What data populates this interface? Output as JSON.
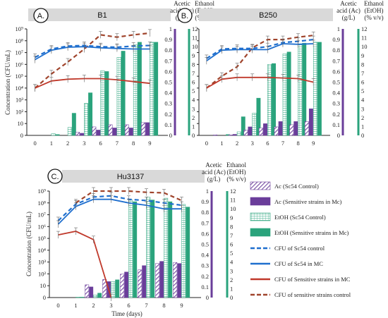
{
  "colors": {
    "ac_color": "#6a3d9a",
    "etoh_color": "#2aa37c",
    "cfu_sc54_color": "#1f6fce",
    "cfu_sensitive_mc_color": "#c0392b",
    "cfu_sensitive_control_color": "#a0442c",
    "header_bg": "#d9d9d9"
  },
  "left_axis": {
    "label": "Concentration (CFU/mL)",
    "tick_labels": [
      "10⁹",
      "10⁸",
      "10⁷",
      "10⁶",
      "10⁵",
      "10⁴",
      "10³",
      "10²",
      "10",
      "0"
    ]
  },
  "right_axes": {
    "ac_label": [
      "Acetic",
      "acid (Ac)",
      "(g/L)"
    ],
    "etoh_label": [
      "Ethanol",
      "(EtOH)",
      "(% v/v)"
    ],
    "ac_ticks": [
      "1",
      "0.9",
      "0.8",
      "0.7",
      "0.6",
      "0.5",
      "0.4",
      "0.3",
      "0.2",
      "0.1",
      "0"
    ],
    "etoh_ticks": [
      "12",
      "11",
      "10",
      "9",
      "8",
      "7",
      "6",
      "5",
      "4",
      "3",
      "2",
      "1",
      "0"
    ]
  },
  "x_ticks": [
    "0",
    "1",
    "2",
    "3",
    "6",
    "7",
    "8",
    "9"
  ],
  "x_label": "Time (days)",
  "legend": [
    {
      "label": "Ac (Sc54 Control)",
      "kind": "bar-hatch",
      "color": "#6a3d9a"
    },
    {
      "label": "Ac (Sensitive strains in Mc)",
      "kind": "bar-solid",
      "color": "#6a3d9a"
    },
    {
      "label": "EtOH (Sc54 Control)",
      "kind": "bar-grid",
      "color": "#2aa37c"
    },
    {
      "label": "EtOH (Sensitive strains in Mc)",
      "kind": "bar-solid",
      "color": "#2aa37c"
    },
    {
      "label": "CFU of Sc54 control",
      "kind": "line-dash",
      "color": "#1f6fce"
    },
    {
      "label": "CFU of Sc54 in MC",
      "kind": "line-solid",
      "color": "#1f6fce"
    },
    {
      "label": "CFU of Sensitive strains in MC",
      "kind": "line-solid",
      "color": "#c0392b"
    },
    {
      "label": "CFU of sensitive strains control",
      "kind": "line-dash",
      "color": "#a0442c"
    }
  ],
  "chart_data": [
    {
      "panel": "A.",
      "title": "B1",
      "type": "bar+line",
      "x": [
        "0",
        "1",
        "2",
        "3",
        "6",
        "7",
        "8",
        "9"
      ],
      "cfu_axis": "log10 CFU/mL, 0 (=10^0) to 9 (=10^9)",
      "series": [
        {
          "name": "CFU of Sc54 control",
          "type": "line",
          "log10_values": [
            6.6,
            7.3,
            7.55,
            7.6,
            7.5,
            7.45,
            7.55,
            7.6
          ]
        },
        {
          "name": "CFU of Sc54 in MC",
          "type": "line",
          "log10_values": [
            6.4,
            7.2,
            7.45,
            7.5,
            7.4,
            7.35,
            7.3,
            7.3
          ]
        },
        {
          "name": "CFU of Sensitive strains in MC",
          "type": "line",
          "log10_values": [
            4.0,
            4.6,
            4.75,
            4.8,
            4.8,
            4.7,
            4.55,
            4.4
          ]
        },
        {
          "name": "CFU of sensitive strains control",
          "type": "line",
          "log10_values": [
            4.0,
            5.2,
            6.2,
            7.3,
            8.5,
            8.3,
            8.5,
            8.65
          ]
        },
        {
          "name": "Ac (Sc54 Control)",
          "type": "bar",
          "axis": "acetic acid g/L",
          "values": [
            0.0,
            0.0,
            0.0,
            0.03,
            0.08,
            0.1,
            0.1,
            0.12
          ]
        },
        {
          "name": "Ac (Sensitive strains in Mc)",
          "type": "bar",
          "axis": "acetic acid g/L",
          "values": [
            0.0,
            0.0,
            0.0,
            0.02,
            0.05,
            0.07,
            0.07,
            0.12
          ]
        },
        {
          "name": "EtOH (Sc54 Control)",
          "type": "bar",
          "axis": "ethanol % v/v",
          "values": [
            0.0,
            0.2,
            0.9,
            3.6,
            7.3,
            8.8,
            10.2,
            10.5
          ]
        },
        {
          "name": "EtOH (Sensitive strains in Mc)",
          "type": "bar",
          "axis": "ethanol % v/v",
          "values": [
            0.0,
            0.1,
            2.5,
            4.8,
            7.2,
            9.5,
            10.5,
            10.5
          ]
        }
      ]
    },
    {
      "panel": "B.",
      "title": "B250",
      "type": "bar+line",
      "x": [
        "0",
        "1",
        "2",
        "3",
        "6",
        "7",
        "8",
        "9"
      ],
      "cfu_axis": "log10 CFU/mL, 0 (=10^0) to 9 (=10^9)",
      "series": [
        {
          "name": "CFU of Sc54 control",
          "type": "line",
          "log10_values": [
            6.5,
            7.3,
            7.35,
            7.35,
            7.5,
            7.85,
            7.95,
            8.1
          ]
        },
        {
          "name": "CFU of Sc54 in MC",
          "type": "line",
          "log10_values": [
            6.3,
            7.2,
            7.25,
            7.25,
            7.25,
            7.75,
            7.7,
            7.75
          ]
        },
        {
          "name": "CFU of Sensitive strains in MC",
          "type": "line",
          "log10_values": [
            4.0,
            4.75,
            4.9,
            4.9,
            4.9,
            4.85,
            4.8,
            4.5
          ]
        },
        {
          "name": "CFU of sensitive strains control",
          "type": "line",
          "log10_values": [
            4.0,
            5.0,
            5.8,
            7.4,
            8.1,
            8.1,
            8.3,
            8.45
          ]
        },
        {
          "name": "Ac (Sc54 Control)",
          "type": "bar",
          "axis": "acetic acid g/L",
          "values": [
            0.0,
            0.005,
            0.005,
            0.05,
            0.07,
            0.08,
            0.1,
            0.13
          ]
        },
        {
          "name": "Ac (Sensitive strains in Mc)",
          "type": "bar",
          "axis": "acetic acid g/L",
          "values": [
            0.0,
            0.0,
            0.01,
            0.08,
            0.11,
            0.13,
            0.13,
            0.25
          ]
        },
        {
          "name": "EtOH (Sc54 Control)",
          "type": "bar",
          "axis": "ethanol % v/v",
          "values": [
            0.0,
            0.0,
            0.4,
            2.5,
            8.0,
            9.2,
            10.2,
            10.5
          ]
        },
        {
          "name": "EtOH (Sensitive strains in Mc)",
          "type": "bar",
          "axis": "ethanol % v/v",
          "values": [
            0.0,
            0.1,
            2.1,
            4.2,
            8.1,
            9.4,
            10.4,
            10.5
          ]
        }
      ]
    },
    {
      "panel": "C.",
      "title": "Hu3137",
      "type": "bar+line",
      "x": [
        "0",
        "1",
        "2",
        "3",
        "6",
        "7",
        "8",
        "9"
      ],
      "cfu_axis": "log10 CFU/mL, 0 (=10^0) to 9 (=10^9)",
      "series": [
        {
          "name": "CFU of Sc54 control",
          "type": "line",
          "log10_values": [
            6.5,
            7.9,
            8.5,
            8.6,
            8.3,
            8.2,
            8.0,
            7.8
          ]
        },
        {
          "name": "CFU of Sc54 in MC",
          "type": "line",
          "log10_values": [
            6.2,
            7.7,
            8.3,
            8.3,
            8.0,
            7.8,
            7.5,
            7.5
          ]
        },
        {
          "name": "CFU of Sensitive strains in MC",
          "type": "line",
          "log10_values": [
            5.3,
            5.6,
            4.9,
            0.0,
            null,
            null,
            null,
            null
          ]
        },
        {
          "name": "CFU of sensitive strains control",
          "type": "line",
          "log10_values": [
            null,
            8.0,
            9.0,
            9.0,
            9.0,
            8.9,
            8.85,
            8.2
          ]
        },
        {
          "name": "Ac (Sc54 Control)",
          "type": "bar",
          "axis": "acetic acid g/L",
          "values": [
            0.0,
            0.0,
            0.12,
            0.17,
            0.22,
            0.26,
            0.32,
            0.33
          ]
        },
        {
          "name": "Ac (Sensitive strains in Mc)",
          "type": "bar",
          "axis": "acetic acid g/L",
          "values": [
            0.0,
            0.0,
            0.1,
            0.15,
            0.24,
            0.3,
            0.34,
            0.32
          ]
        },
        {
          "name": "EtOH (Sc54 Control)",
          "type": "bar",
          "axis": "ethanol % v/v",
          "values": [
            0.0,
            0.05,
            0.3,
            1.8,
            11.0,
            11.3,
            11.2,
            10.5
          ]
        },
        {
          "name": "EtOH (Sensitive strains in Mc)",
          "type": "bar",
          "axis": "ethanol % v/v",
          "values": [
            0.0,
            0.05,
            0.5,
            2.0,
            10.8,
            11.0,
            10.8,
            10.2
          ]
        }
      ]
    }
  ]
}
